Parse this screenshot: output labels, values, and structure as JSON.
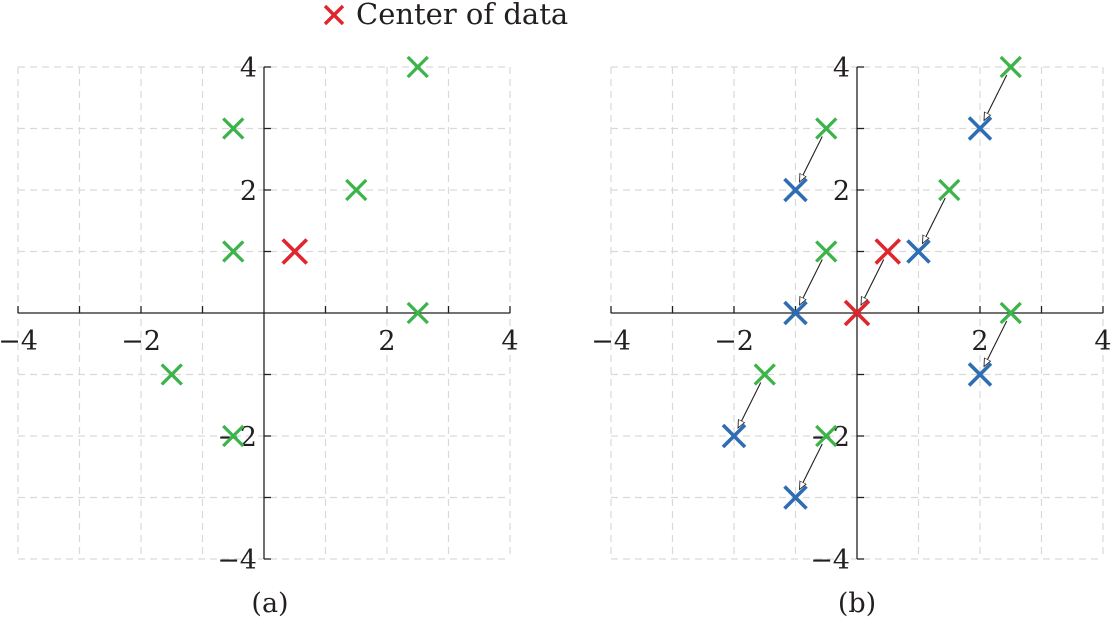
{
  "legend": {
    "label": "Center of data",
    "marker_color": "#e0252c"
  },
  "colors": {
    "data_points": "#3cb44a",
    "centered_points": "#2e6db4",
    "center": "#e0252c",
    "axis": "#231f20",
    "grid": "#d9d9d9"
  },
  "chart_data": [
    {
      "type": "scatter",
      "panel_label": "(a)",
      "xlim": [
        -4,
        4
      ],
      "ylim": [
        -4,
        4
      ],
      "x_tick_labels": [
        "−4",
        "−2",
        "2",
        "4"
      ],
      "x_tick_values": [
        -4,
        -2,
        2,
        4
      ],
      "y_tick_labels": [
        "4",
        "2",
        "−2",
        "−4"
      ],
      "y_tick_values": [
        4,
        2,
        -2,
        -4
      ],
      "grid": true,
      "series": [
        {
          "role": "data",
          "points": [
            [
              -0.5,
              3
            ],
            [
              2.5,
              4
            ],
            [
              1.5,
              2
            ],
            [
              -0.5,
              1
            ],
            [
              2.5,
              0
            ],
            [
              -1.5,
              -1
            ],
            [
              -0.5,
              -2
            ]
          ]
        },
        {
          "role": "center",
          "points": [
            [
              0.5,
              1
            ]
          ]
        }
      ]
    },
    {
      "type": "scatter",
      "panel_label": "(b)",
      "xlim": [
        -4,
        4
      ],
      "ylim": [
        -4,
        4
      ],
      "x_tick_labels": [
        "−4",
        "−2",
        "2",
        "4"
      ],
      "x_tick_values": [
        -4,
        -2,
        2,
        4
      ],
      "y_tick_labels": [
        "4",
        "2",
        "−2",
        "−4"
      ],
      "y_tick_values": [
        4,
        2,
        -2,
        -4
      ],
      "grid": true,
      "series": [
        {
          "role": "data",
          "points": [
            [
              -0.5,
              3
            ],
            [
              2.5,
              4
            ],
            [
              1.5,
              2
            ],
            [
              -0.5,
              1
            ],
            [
              2.5,
              0
            ],
            [
              -1.5,
              -1
            ],
            [
              -0.5,
              -2
            ]
          ]
        },
        {
          "role": "center",
          "points": [
            [
              0.5,
              1
            ]
          ]
        },
        {
          "role": "centered",
          "points": [
            [
              -1,
              2
            ],
            [
              2,
              3
            ],
            [
              1,
              1
            ],
            [
              -1,
              0
            ],
            [
              2,
              -1
            ],
            [
              -2,
              -2
            ],
            [
              -1,
              -3
            ],
            [
              0,
              0
            ]
          ]
        }
      ],
      "arrows": [
        {
          "from": [
            -0.5,
            3
          ],
          "to": [
            -1,
            2
          ]
        },
        {
          "from": [
            2.5,
            4
          ],
          "to": [
            2,
            3
          ]
        },
        {
          "from": [
            1.5,
            2
          ],
          "to": [
            1,
            1
          ]
        },
        {
          "from": [
            -0.5,
            1
          ],
          "to": [
            -1,
            0
          ]
        },
        {
          "from": [
            2.5,
            0
          ],
          "to": [
            2,
            -1
          ]
        },
        {
          "from": [
            -1.5,
            -1
          ],
          "to": [
            -2,
            -2
          ]
        },
        {
          "from": [
            -0.5,
            -2
          ],
          "to": [
            -1,
            -3
          ]
        },
        {
          "from": [
            0.5,
            1
          ],
          "to": [
            0,
            0
          ]
        }
      ]
    }
  ]
}
